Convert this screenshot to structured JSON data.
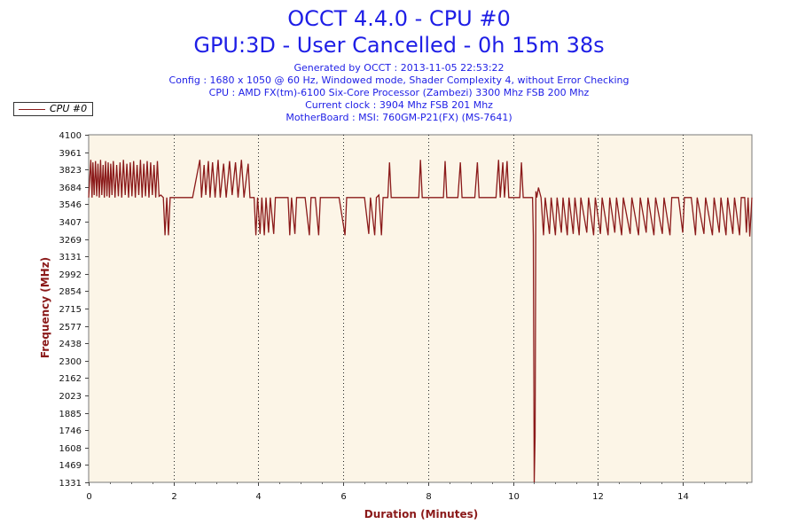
{
  "chart_data": {
    "type": "line",
    "title": "OCCT 4.4.0 - CPU #0",
    "subtitle": "GPU:3D - User Cancelled - 0h 15m 38s",
    "info_lines": [
      "Generated by OCCT : 2013-11-05 22:53:22",
      "Config : 1680 x 1050 @ 60 Hz, Windowed mode, Shader Complexity 4, without Error Checking",
      "CPU : AMD FX(tm)-6100 Six-Core Processor (Zambezi) 3300 Mhz FSB 200 Mhz",
      "Current clock : 3904 Mhz FSB 201 Mhz",
      "MotherBoard : MSI: 760GM-P21(FX) (MS-7641)"
    ],
    "xlabel": "Duration (Minutes)",
    "ylabel": "Frequency (MHz)",
    "xlim": [
      0,
      15.63
    ],
    "ylim": [
      1331,
      4100
    ],
    "x_ticks": [
      0,
      2,
      4,
      6,
      8,
      10,
      12,
      14
    ],
    "x_tick_labels": [
      "0",
      "2",
      "4",
      "6",
      "8",
      "10",
      "12",
      "14"
    ],
    "y_ticks": [
      1331,
      1469,
      1608,
      1746,
      1885,
      2023,
      2162,
      2300,
      2438,
      2577,
      2715,
      2854,
      2992,
      3131,
      3269,
      3407,
      3546,
      3684,
      3823,
      3961,
      4100
    ],
    "y_tick_labels": [
      "1331",
      "1469",
      "1608",
      "1746",
      "1885",
      "2023",
      "2162",
      "2300",
      "2438",
      "2577",
      "2715",
      "2854",
      "2992",
      "3131",
      "3269",
      "3407",
      "3546",
      "3684",
      "3823",
      "3961",
      "4100"
    ],
    "grid": {
      "x": true,
      "y": false
    },
    "legend": {
      "position": "top-left",
      "entries": [
        "CPU #0"
      ]
    },
    "series": [
      {
        "name": "CPU #0",
        "color": "#8b1a1a",
        "points": [
          [
            0.0,
            3600
          ],
          [
            0.05,
            3900
          ],
          [
            0.08,
            3600
          ],
          [
            0.1,
            3880
          ],
          [
            0.13,
            3620
          ],
          [
            0.16,
            3890
          ],
          [
            0.19,
            3610
          ],
          [
            0.22,
            3870
          ],
          [
            0.25,
            3600
          ],
          [
            0.28,
            3900
          ],
          [
            0.31,
            3620
          ],
          [
            0.34,
            3860
          ],
          [
            0.37,
            3600
          ],
          [
            0.4,
            3890
          ],
          [
            0.43,
            3610
          ],
          [
            0.46,
            3880
          ],
          [
            0.49,
            3600
          ],
          [
            0.52,
            3870
          ],
          [
            0.55,
            3620
          ],
          [
            0.58,
            3890
          ],
          [
            0.62,
            3600
          ],
          [
            0.66,
            3860
          ],
          [
            0.7,
            3610
          ],
          [
            0.74,
            3880
          ],
          [
            0.78,
            3600
          ],
          [
            0.82,
            3900
          ],
          [
            0.86,
            3620
          ],
          [
            0.9,
            3870
          ],
          [
            0.94,
            3600
          ],
          [
            0.98,
            3880
          ],
          [
            1.02,
            3610
          ],
          [
            1.06,
            3890
          ],
          [
            1.1,
            3600
          ],
          [
            1.14,
            3860
          ],
          [
            1.18,
            3620
          ],
          [
            1.22,
            3900
          ],
          [
            1.26,
            3600
          ],
          [
            1.3,
            3870
          ],
          [
            1.34,
            3610
          ],
          [
            1.38,
            3890
          ],
          [
            1.42,
            3600
          ],
          [
            1.46,
            3880
          ],
          [
            1.5,
            3620
          ],
          [
            1.54,
            3860
          ],
          [
            1.58,
            3600
          ],
          [
            1.62,
            3890
          ],
          [
            1.66,
            3610
          ],
          [
            1.7,
            3620
          ],
          [
            1.76,
            3600
          ],
          [
            1.8,
            3300
          ],
          [
            1.84,
            3600
          ],
          [
            1.88,
            3300
          ],
          [
            1.92,
            3600
          ],
          [
            2.0,
            3600
          ],
          [
            2.3,
            3600
          ],
          [
            2.45,
            3600
          ],
          [
            2.62,
            3900
          ],
          [
            2.66,
            3600
          ],
          [
            2.72,
            3860
          ],
          [
            2.76,
            3620
          ],
          [
            2.82,
            3890
          ],
          [
            2.86,
            3600
          ],
          [
            2.92,
            3880
          ],
          [
            2.98,
            3600
          ],
          [
            3.05,
            3900
          ],
          [
            3.1,
            3600
          ],
          [
            3.18,
            3870
          ],
          [
            3.24,
            3600
          ],
          [
            3.32,
            3890
          ],
          [
            3.38,
            3620
          ],
          [
            3.46,
            3880
          ],
          [
            3.52,
            3600
          ],
          [
            3.6,
            3900
          ],
          [
            3.66,
            3600
          ],
          [
            3.76,
            3870
          ],
          [
            3.8,
            3600
          ],
          [
            3.9,
            3600
          ],
          [
            3.94,
            3300
          ],
          [
            3.98,
            3600
          ],
          [
            4.04,
            3310
          ],
          [
            4.08,
            3600
          ],
          [
            4.14,
            3300
          ],
          [
            4.18,
            3600
          ],
          [
            4.24,
            3320
          ],
          [
            4.28,
            3600
          ],
          [
            4.36,
            3310
          ],
          [
            4.4,
            3600
          ],
          [
            4.5,
            3600
          ],
          [
            4.6,
            3600
          ],
          [
            4.7,
            3600
          ],
          [
            4.74,
            3300
          ],
          [
            4.78,
            3600
          ],
          [
            4.86,
            3310
          ],
          [
            4.9,
            3600
          ],
          [
            5.0,
            3600
          ],
          [
            5.1,
            3600
          ],
          [
            5.2,
            3300
          ],
          [
            5.24,
            3600
          ],
          [
            5.34,
            3600
          ],
          [
            5.42,
            3300
          ],
          [
            5.46,
            3600
          ],
          [
            5.6,
            3600
          ],
          [
            5.9,
            3600
          ],
          [
            6.04,
            3300
          ],
          [
            6.08,
            3600
          ],
          [
            6.3,
            3600
          ],
          [
            6.5,
            3600
          ],
          [
            6.6,
            3310
          ],
          [
            6.64,
            3600
          ],
          [
            6.74,
            3300
          ],
          [
            6.78,
            3600
          ],
          [
            6.84,
            3620
          ],
          [
            6.9,
            3300
          ],
          [
            6.94,
            3600
          ],
          [
            7.05,
            3600
          ],
          [
            7.09,
            3880
          ],
          [
            7.13,
            3600
          ],
          [
            7.4,
            3600
          ],
          [
            7.6,
            3600
          ],
          [
            7.78,
            3600
          ],
          [
            7.82,
            3900
          ],
          [
            7.86,
            3600
          ],
          [
            8.2,
            3600
          ],
          [
            8.36,
            3600
          ],
          [
            8.4,
            3890
          ],
          [
            8.44,
            3600
          ],
          [
            8.6,
            3600
          ],
          [
            8.7,
            3600
          ],
          [
            8.76,
            3880
          ],
          [
            8.8,
            3600
          ],
          [
            9.0,
            3600
          ],
          [
            9.1,
            3600
          ],
          [
            9.16,
            3880
          ],
          [
            9.2,
            3600
          ],
          [
            9.4,
            3600
          ],
          [
            9.6,
            3600
          ],
          [
            9.66,
            3900
          ],
          [
            9.7,
            3600
          ],
          [
            9.76,
            3880
          ],
          [
            9.8,
            3600
          ],
          [
            9.86,
            3890
          ],
          [
            9.9,
            3600
          ],
          [
            10.0,
            3600
          ],
          [
            10.16,
            3600
          ],
          [
            10.2,
            3880
          ],
          [
            10.24,
            3600
          ],
          [
            10.4,
            3600
          ],
          [
            10.46,
            3600
          ],
          [
            10.48,
            3300
          ],
          [
            10.5,
            1331
          ],
          [
            10.52,
            1700
          ],
          [
            10.54,
            3650
          ],
          [
            10.56,
            3600
          ],
          [
            10.6,
            3680
          ],
          [
            10.66,
            3600
          ],
          [
            10.72,
            3300
          ],
          [
            10.76,
            3600
          ],
          [
            10.86,
            3310
          ],
          [
            10.9,
            3600
          ],
          [
            11.0,
            3300
          ],
          [
            11.04,
            3600
          ],
          [
            11.14,
            3320
          ],
          [
            11.18,
            3600
          ],
          [
            11.28,
            3300
          ],
          [
            11.32,
            3600
          ],
          [
            11.42,
            3310
          ],
          [
            11.46,
            3600
          ],
          [
            11.56,
            3300
          ],
          [
            11.6,
            3600
          ],
          [
            11.74,
            3320
          ],
          [
            11.78,
            3600
          ],
          [
            11.9,
            3300
          ],
          [
            11.94,
            3600
          ],
          [
            12.06,
            3310
          ],
          [
            12.1,
            3600
          ],
          [
            12.24,
            3300
          ],
          [
            12.28,
            3600
          ],
          [
            12.4,
            3320
          ],
          [
            12.44,
            3600
          ],
          [
            12.56,
            3300
          ],
          [
            12.6,
            3600
          ],
          [
            12.76,
            3310
          ],
          [
            12.8,
            3600
          ],
          [
            12.96,
            3300
          ],
          [
            13.0,
            3600
          ],
          [
            13.14,
            3320
          ],
          [
            13.18,
            3600
          ],
          [
            13.32,
            3300
          ],
          [
            13.36,
            3600
          ],
          [
            13.52,
            3310
          ],
          [
            13.56,
            3600
          ],
          [
            13.7,
            3300
          ],
          [
            13.74,
            3600
          ],
          [
            13.9,
            3600
          ],
          [
            14.0,
            3320
          ],
          [
            14.04,
            3600
          ],
          [
            14.2,
            3600
          ],
          [
            14.3,
            3300
          ],
          [
            14.34,
            3600
          ],
          [
            14.5,
            3310
          ],
          [
            14.54,
            3600
          ],
          [
            14.7,
            3300
          ],
          [
            14.74,
            3600
          ],
          [
            14.86,
            3320
          ],
          [
            14.9,
            3600
          ],
          [
            15.02,
            3300
          ],
          [
            15.06,
            3600
          ],
          [
            15.18,
            3310
          ],
          [
            15.22,
            3600
          ],
          [
            15.34,
            3300
          ],
          [
            15.38,
            3600
          ],
          [
            15.46,
            3600
          ],
          [
            15.5,
            3320
          ],
          [
            15.54,
            3600
          ],
          [
            15.58,
            3290
          ],
          [
            15.63,
            3600
          ]
        ]
      }
    ]
  }
}
